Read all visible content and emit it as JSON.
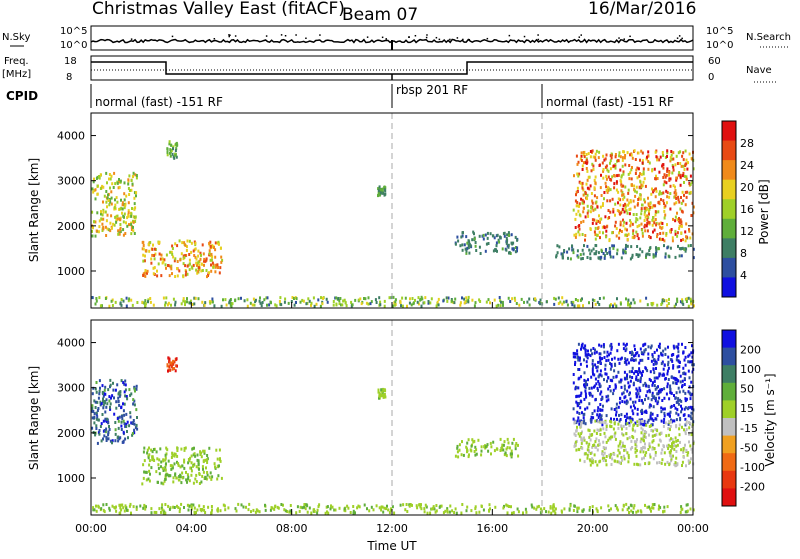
{
  "header": {
    "title": "Christmas Valley East (fitACF)",
    "beam": "Beam 07",
    "date": "16/Mar/2016"
  },
  "sky_panel": {
    "left_label": "N.Sky",
    "right_label": "N.Search",
    "ticks": [
      "10^5",
      "10^0"
    ]
  },
  "freq_panel": {
    "left_label_1": "Freq.",
    "left_label_2": "[MHz]",
    "left_ticks": [
      "18",
      "8"
    ],
    "right_label": "Nave",
    "right_ticks": [
      "60",
      "0"
    ]
  },
  "cpid": {
    "label": "CPID",
    "segments": [
      "normal (fast) -151 RF",
      "rbsp 201 RF",
      "normal (fast) -151 RF"
    ]
  },
  "axes": {
    "ylabel": "Slant Range [km]",
    "xlabel": "Time UT",
    "x_ticks": [
      "00:00",
      "04:00",
      "08:00",
      "12:00",
      "16:00",
      "20:00",
      "00:00"
    ],
    "y_ticks": [
      "4000",
      "3000",
      "2000",
      "1000"
    ],
    "x_range_hours": [
      0,
      24
    ],
    "y_range_km": [
      180,
      4500
    ]
  },
  "colors": {
    "power": [
      "#1010e0",
      "#2e4fa0",
      "#3e7e64",
      "#5fae3a",
      "#9fd028",
      "#e8d020",
      "#f08a1a",
      "#e84a14",
      "#e01010"
    ],
    "velocity": [
      "#1010e0",
      "#2e4fa0",
      "#3e7e64",
      "#5fae3a",
      "#9fd028",
      "#c0c0c0",
      "#f0a020",
      "#f06a14",
      "#e83810",
      "#e01010"
    ]
  },
  "power_scale": {
    "label": "Power [dB]",
    "ticks": [
      "28",
      "24",
      "20",
      "16",
      "12",
      "8",
      "4"
    ]
  },
  "velocity_scale": {
    "label": "Velocity [m s⁻¹]",
    "ticks": [
      "200",
      "100",
      "50",
      "15",
      "-15",
      "-50",
      "-100",
      "-200"
    ]
  },
  "chart_data": [
    {
      "type": "heatmap",
      "name": "Power",
      "xlabel": "Time UT",
      "ylabel": "Slant Range [km]",
      "units": "dB",
      "xlim": [
        0,
        24
      ],
      "ylim": [
        180,
        4500
      ],
      "clim": [
        0,
        30
      ],
      "regions": [
        {
          "t": [
            0.0,
            1.8
          ],
          "r": [
            1800,
            3200
          ],
          "v": [
            10,
            24
          ]
        },
        {
          "t": [
            2.0,
            5.2
          ],
          "r": [
            900,
            1700
          ],
          "v": [
            14,
            28
          ]
        },
        {
          "t": [
            3.0,
            3.4
          ],
          "r": [
            3500,
            3900
          ],
          "v": [
            8,
            14
          ]
        },
        {
          "t": [
            11.4,
            11.7
          ],
          "r": [
            2700,
            2900
          ],
          "v": [
            6,
            12
          ]
        },
        {
          "t": [
            14.5,
            17.0
          ],
          "r": [
            1400,
            1900
          ],
          "v": [
            4,
            10
          ]
        },
        {
          "t": [
            19.2,
            24.0
          ],
          "r": [
            1700,
            3700
          ],
          "v": [
            14,
            30
          ]
        },
        {
          "t": [
            18.5,
            24.0
          ],
          "r": [
            1300,
            1600
          ],
          "v": [
            4,
            10
          ]
        },
        {
          "t": [
            0.0,
            24.0
          ],
          "r": [
            250,
            450
          ],
          "v": [
            4,
            20
          ]
        }
      ]
    },
    {
      "type": "heatmap",
      "name": "Velocity",
      "xlabel": "Time UT",
      "ylabel": "Slant Range [km]",
      "units": "m s-1",
      "xlim": [
        0,
        24
      ],
      "ylim": [
        180,
        4500
      ],
      "clim": [
        -200,
        200
      ],
      "regions": [
        {
          "t": [
            0.0,
            1.8
          ],
          "r": [
            1800,
            3200
          ],
          "v": [
            80,
            200
          ]
        },
        {
          "t": [
            2.0,
            5.2
          ],
          "r": [
            900,
            1700
          ],
          "v": [
            20,
            60
          ]
        },
        {
          "t": [
            3.0,
            3.4
          ],
          "r": [
            3400,
            3700
          ],
          "v": [
            -200,
            -100
          ]
        },
        {
          "t": [
            11.4,
            11.7
          ],
          "r": [
            2800,
            3000
          ],
          "v": [
            20,
            60
          ]
        },
        {
          "t": [
            14.5,
            17.0
          ],
          "r": [
            1500,
            1900
          ],
          "v": [
            20,
            60
          ]
        },
        {
          "t": [
            19.2,
            24.0
          ],
          "r": [
            2200,
            4000
          ],
          "v": [
            150,
            240
          ]
        },
        {
          "t": [
            19.2,
            24.0
          ],
          "r": [
            1300,
            2300
          ],
          "v": [
            -10,
            10
          ]
        },
        {
          "t": [
            0.0,
            24.0
          ],
          "r": [
            250,
            450
          ],
          "v": [
            10,
            60
          ]
        }
      ]
    }
  ]
}
